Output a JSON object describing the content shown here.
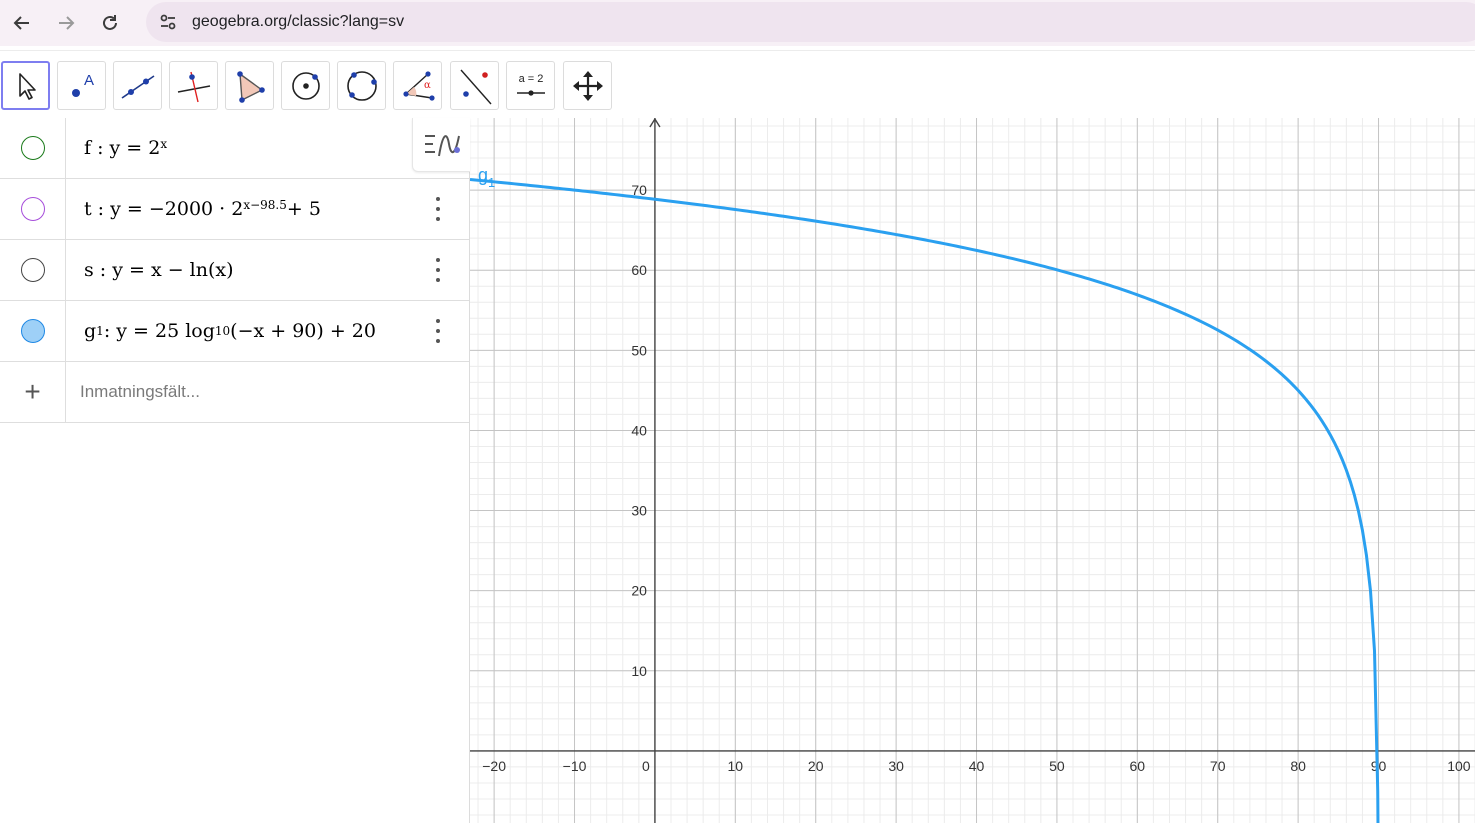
{
  "browser": {
    "url": "geogebra.org/classic?lang=sv",
    "back_icon": "arrow-left-icon",
    "forward_icon": "arrow-right-icon",
    "reload_icon": "reload-icon",
    "site_info_icon": "tune-icon"
  },
  "toolbar": {
    "tools": [
      {
        "name": "move-tool",
        "icon": "cursor-arrow-icon",
        "active": true
      },
      {
        "name": "point-tool",
        "icon": "point-icon",
        "label": "A"
      },
      {
        "name": "line-tool",
        "icon": "line-icon"
      },
      {
        "name": "perpendicular-line-tool",
        "icon": "perpendicular-icon"
      },
      {
        "name": "polygon-tool",
        "icon": "polygon-icon"
      },
      {
        "name": "circle-tool",
        "icon": "circle-center-point-icon"
      },
      {
        "name": "circle-three-points-tool",
        "icon": "circle-three-points-icon"
      },
      {
        "name": "angle-tool",
        "icon": "angle-icon",
        "label": "α"
      },
      {
        "name": "reflect-tool",
        "icon": "reflect-line-icon"
      },
      {
        "name": "slider-tool",
        "icon": "slider-icon",
        "label": "a = 2"
      },
      {
        "name": "move-graphics-tool",
        "icon": "move-arrows-icon"
      }
    ]
  },
  "algebra": {
    "rows": [
      {
        "name": "f",
        "marble_color": "#1a7a1a",
        "marble_filled": false,
        "expr": "f :  y = 2",
        "sup": "x"
      },
      {
        "name": "t",
        "marble_color": "#a64ddb",
        "marble_filled": false,
        "expr": "t :  y = −2000 · 2",
        "sup": "x−98.5",
        "tail": " + 5"
      },
      {
        "name": "s",
        "marble_color": "#444444",
        "marble_filled": false,
        "expr": "s :  y = x − ln(x)"
      },
      {
        "name": "g1",
        "marble_color": "#1e88e5",
        "marble_filled": true,
        "fill": "#9ed0f7",
        "expr_a": "g",
        "sub_a": "1",
        "expr_b": " :  y = 25  log",
        "sub_b": "10",
        "expr_c": "(−x + 90) + 20"
      }
    ],
    "input_placeholder": "Inmatningsfält...",
    "add_icon": "plus-icon",
    "menu_icon": "kebab-menu-icon",
    "style_toggle_icon": "algebra-graphics-toggle-icon"
  },
  "graphics": {
    "x_ticks": [
      "−20",
      "−10",
      "0",
      "10",
      "20",
      "30",
      "40",
      "50",
      "60",
      "70",
      "80",
      "90",
      "100"
    ],
    "y_ticks": [
      "10",
      "20",
      "30",
      "40",
      "50",
      "60",
      "70"
    ],
    "curve_label": "g",
    "curve_label_sub": "1",
    "curve_color": "#2aa0f0",
    "grid": true
  },
  "chart_data": {
    "type": "line",
    "series": [
      {
        "name": "g1",
        "formula": "y = 25 log10(-x + 90) + 20",
        "x": [
          -22,
          -10,
          0,
          10,
          20,
          30,
          40,
          50,
          60,
          70,
          80,
          85,
          88,
          89.5,
          89.9
        ],
        "y": [
          71.2,
          70.0,
          68.9,
          67.5,
          66.1,
          64.5,
          62.5,
          60.0,
          56.9,
          52.5,
          45.0,
          37.5,
          27.5,
          12.5,
          -5.0
        ]
      }
    ],
    "xlim": [
      -23,
      102
    ],
    "ylim": [
      -9,
      79
    ],
    "grid": true
  }
}
